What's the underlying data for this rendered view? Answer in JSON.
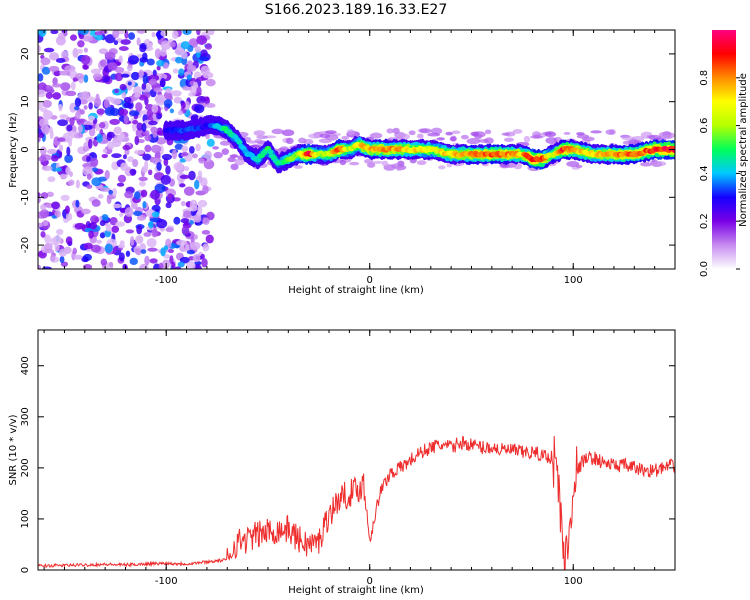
{
  "title": "S166.2023.189.16.33.E27",
  "chart_data": [
    {
      "type": "heatmap",
      "xlabel": "Height of straight line (km)",
      "ylabel": "Frequency (Hz)",
      "xlim": [
        -163,
        150
      ],
      "ylim": [
        -25,
        25
      ],
      "x_ticks": [
        -100,
        0,
        100
      ],
      "y_ticks": [
        -20,
        -10,
        0,
        10,
        20
      ],
      "colorbar": {
        "label": "Normalized spectral amplitude",
        "range": [
          0,
          1
        ],
        "ticks": [
          "0.0",
          "0.2",
          "0.4",
          "0.6",
          "0.8"
        ],
        "colors": [
          "#ffffff",
          "#c78bf0",
          "#7a00e6",
          "#1400ff",
          "#00c8ff",
          "#00ff5a",
          "#b4ff00",
          "#ffff00",
          "#ff8c00",
          "#ff0000",
          "#ff0080"
        ]
      },
      "ridge": {
        "description_free": true,
        "x": [
          -100,
          -90,
          -80,
          -75,
          -70,
          -65,
          -60,
          -55,
          -50,
          -45,
          -40,
          -35,
          -30,
          -25,
          -20,
          -15,
          -10,
          -5,
          0,
          10,
          20,
          30,
          40,
          50,
          60,
          70,
          75,
          80,
          85,
          90,
          95,
          100,
          110,
          120,
          130,
          140,
          150
        ],
        "freq": [
          4,
          4,
          5,
          5,
          4,
          2,
          -1,
          -2,
          0,
          -3,
          -2,
          -1,
          -1,
          -1,
          -1,
          0,
          0,
          1,
          0,
          0,
          0,
          0,
          -1,
          -1,
          -1,
          -1,
          -1,
          -2,
          -2,
          -1,
          0,
          0,
          -1,
          -1,
          -1,
          0,
          0
        ],
        "amplitude": [
          0.3,
          0.35,
          0.3,
          0.4,
          0.5,
          0.45,
          0.4,
          0.45,
          0.5,
          0.45,
          0.55,
          0.6,
          0.95,
          0.6,
          0.65,
          0.9,
          0.6,
          0.75,
          0.8,
          0.8,
          0.75,
          0.7,
          0.75,
          0.8,
          0.85,
          0.8,
          0.75,
          0.95,
          0.9,
          0.6,
          0.9,
          0.8,
          0.75,
          0.8,
          0.85,
          0.9,
          0.95
        ]
      }
    },
    {
      "type": "line",
      "xlabel": "Height of straight line (km)",
      "ylabel": "SNR (10 * v/v)",
      "xlim": [
        -163,
        150
      ],
      "ylim": [
        0,
        470
      ],
      "x_ticks": [
        -100,
        0,
        100
      ],
      "y_ticks": [
        0,
        100,
        200,
        300,
        400
      ],
      "color": "#ee2d2d",
      "x": [
        -163,
        -150,
        -140,
        -130,
        -120,
        -110,
        -100,
        -90,
        -80,
        -75,
        -70,
        -68,
        -65,
        -60,
        -55,
        -50,
        -45,
        -40,
        -35,
        -30,
        -25,
        -22,
        -20,
        -18,
        -15,
        -10,
        -5,
        -3,
        0,
        5,
        10,
        15,
        20,
        25,
        30,
        35,
        40,
        45,
        50,
        55,
        60,
        65,
        70,
        75,
        80,
        85,
        90,
        92,
        95,
        97,
        100,
        103,
        105,
        110,
        115,
        120,
        125,
        130,
        135,
        140,
        145,
        150
      ],
      "y": [
        8,
        9,
        10,
        11,
        10,
        12,
        13,
        12,
        16,
        18,
        20,
        40,
        55,
        60,
        70,
        75,
        78,
        80,
        60,
        50,
        55,
        90,
        110,
        120,
        140,
        150,
        160,
        170,
        60,
        150,
        190,
        200,
        215,
        230,
        240,
        245,
        240,
        250,
        245,
        240,
        240,
        235,
        235,
        230,
        230,
        225,
        220,
        200,
        40,
        20,
        180,
        200,
        215,
        220,
        210,
        205,
        205,
        200,
        195,
        195,
        200,
        205
      ]
    }
  ]
}
